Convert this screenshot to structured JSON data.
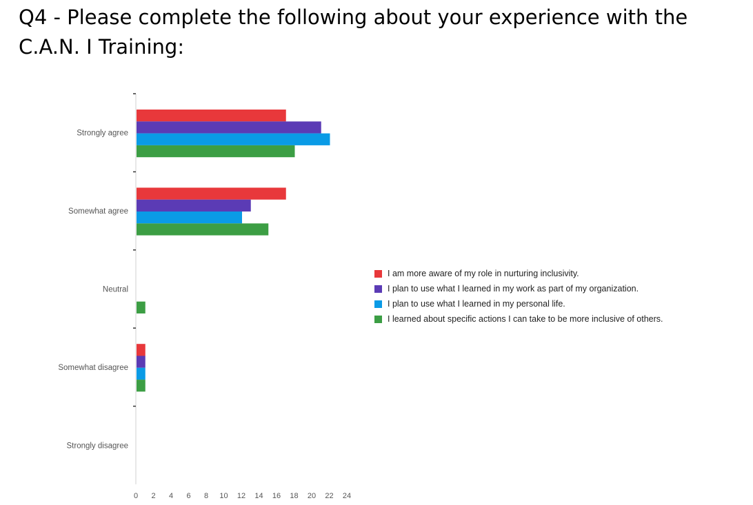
{
  "title": "Q4 - Please complete the following about your experience with the C.A.N. I Training:",
  "chart_data": {
    "type": "bar",
    "orientation": "horizontal",
    "categories": [
      "Strongly agree",
      "Somewhat agree",
      "Neutral",
      "Somewhat disagree",
      "Strongly disagree"
    ],
    "series": [
      {
        "name": "I am more aware of my role in nurturing inclusivity.",
        "color": "#e8383b",
        "values": [
          17,
          17,
          0,
          1,
          0
        ]
      },
      {
        "name": "I plan to use what I learned in my work as part of my organization.",
        "color": "#5b3bb5",
        "values": [
          21,
          13,
          0,
          1,
          0
        ]
      },
      {
        "name": "I plan to use what I learned in my personal life.",
        "color": "#0a9be6",
        "values": [
          22,
          12,
          0,
          1,
          0
        ]
      },
      {
        "name": "I learned about specific actions I can take to be more inclusive of others.",
        "color": "#3c9e44",
        "values": [
          18,
          15,
          1,
          1,
          0
        ]
      }
    ],
    "xticks": [
      "0",
      "2",
      "4",
      "6",
      "8",
      "10",
      "12",
      "14",
      "16",
      "18",
      "20",
      "22",
      "24"
    ],
    "xlim": [
      0,
      24
    ],
    "xlabel": "",
    "ylabel": "",
    "grid": false,
    "legend_position": "right"
  }
}
